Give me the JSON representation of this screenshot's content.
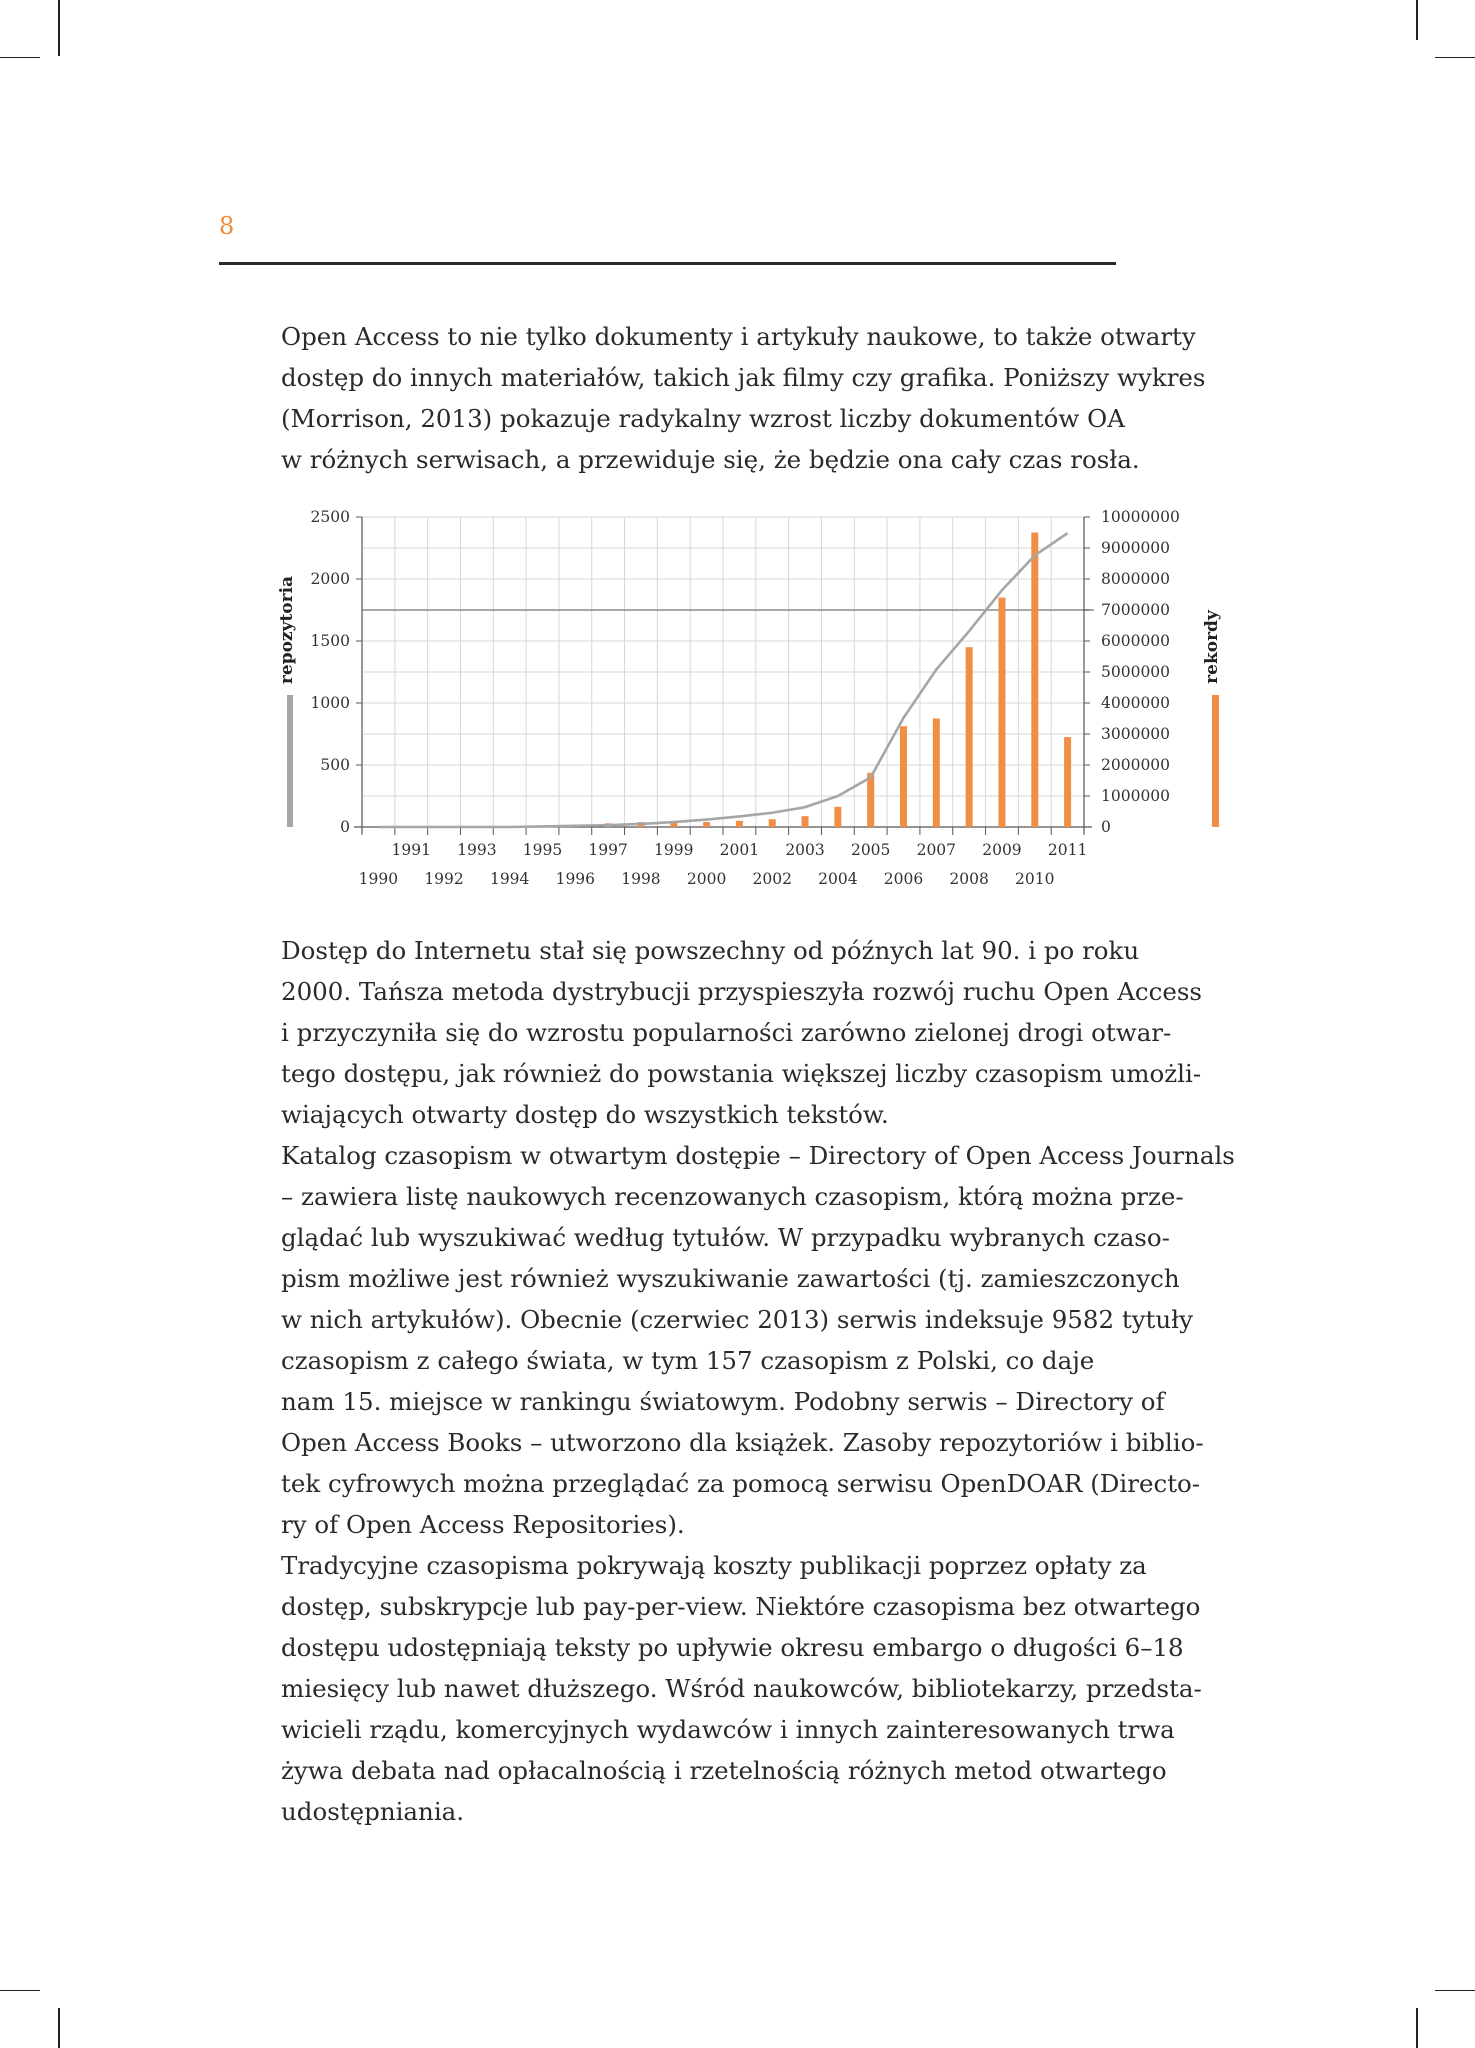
{
  "page": {
    "number": "8",
    "intro_lines": [
      "Open Access to nie tylko dokumenty i artykuły naukowe, to także otwarty",
      "dostęp do innych materiałów, takich jak filmy czy grafika. Poniższy wykres",
      "(Morrison, 2013) pokazuje radykalny wzrost liczby dokumentów OA",
      "w różnych serwisach, a przewiduje się, że będzie ona cały czas rosła."
    ],
    "body_lines": [
      "Dostęp do Internetu stał się powszechny od późnych lat 90. i po roku",
      "2000. Tańsza metoda dystrybucji przyspieszyła rozwój ruchu Open Access",
      "i przyczyniła się do wzrostu popularności zarówno zielonej drogi otwar-",
      "tego dostępu, jak również do powstania większej liczby czasopism umożli-",
      "wiających otwarty dostęp do wszystkich tekstów.",
      "Katalog czasopism w otwartym dostępie – Directory of Open Access Journals",
      "– zawiera listę naukowych recenzowanych czasopism, którą można prze-",
      "glądać lub wyszukiwać według tytułów. W przypadku wybranych czaso-",
      "pism możliwe jest również wyszukiwanie zawartości (tj. zamieszczonych",
      "w nich artykułów). Obecnie (czerwiec 2013) serwis indeksuje 9582 tytuły",
      "czasopism z całego świata, w tym 157 czasopism z Polski, co daje",
      "nam 15. miejsce w rankingu światowym. Podobny serwis – Directory of",
      "Open Access Books – utworzono dla książek. Zasoby repozytoriów i biblio-",
      "tek cyfrowych można przeglądać za pomocą serwisu OpenDOAR (Directo-",
      "ry of Open Access Repositories).",
      "Tradycyjne czasopisma pokrywają koszty publikacji poprzez opłaty za",
      "dostęp, subskrypcje lub pay-per-view. Niektóre czasopisma bez otwartego",
      "dostępu udostępniają teksty po upływie okresu embargo o długości 6–18",
      "miesięcy lub nawet dłuższego. Wśród naukowców, bibliotekarzy, przedsta-",
      "wicieli rządu, komercyjnych wydawców i innych zainteresowanych trwa",
      "żywa debata nad opłacalnością i rzetelnością różnych metod otwartego",
      "udostępniania."
    ]
  },
  "chart_data": {
    "type": "bar",
    "x": [
      1990,
      1991,
      1992,
      1993,
      1994,
      1995,
      1996,
      1997,
      1998,
      1999,
      2000,
      2001,
      2002,
      2003,
      2004,
      2005,
      2006,
      2007,
      2008,
      2009,
      2010,
      2011
    ],
    "x_tick_labels_upper": [
      "1991",
      "1993",
      "1995",
      "1997",
      "1999",
      "2001",
      "2003",
      "2005",
      "2007",
      "2009",
      "2011"
    ],
    "x_tick_labels_lower": [
      "1990",
      "1992",
      "1994",
      "1996",
      "1998",
      "2000",
      "2002",
      "2004",
      "2006",
      "2008",
      "2010"
    ],
    "series": [
      {
        "name": "repozytoria",
        "kind": "line",
        "axis": "left",
        "color": "#a6a6a6",
        "values": [
          0,
          0,
          0,
          0,
          0,
          5,
          10,
          15,
          25,
          40,
          60,
          85,
          115,
          160,
          250,
          400,
          880,
          1270,
          1580,
          1910,
          2190,
          2370
        ]
      },
      {
        "name": "rekordy",
        "kind": "bar",
        "axis": "right",
        "color": "#f28d48",
        "values": [
          0,
          0,
          0,
          0,
          0,
          50000,
          80000,
          120000,
          160000,
          150000,
          160000,
          200000,
          250000,
          350000,
          650000,
          1750000,
          3250000,
          3500000,
          5800000,
          7400000,
          9500000,
          2900000
        ]
      }
    ],
    "y_left": {
      "label": "repozytoria",
      "ticks": [
        "0",
        "500",
        "1000",
        "1500",
        "2000",
        "2500"
      ],
      "lim": [
        0,
        2500
      ]
    },
    "y_right": {
      "label": "rekordy",
      "ticks": [
        "0",
        "1000000",
        "2000000",
        "3000000",
        "4000000",
        "5000000",
        "6000000",
        "7000000",
        "8000000",
        "9000000",
        "10000000"
      ],
      "lim": [
        0,
        10000000
      ]
    },
    "grid": true
  }
}
